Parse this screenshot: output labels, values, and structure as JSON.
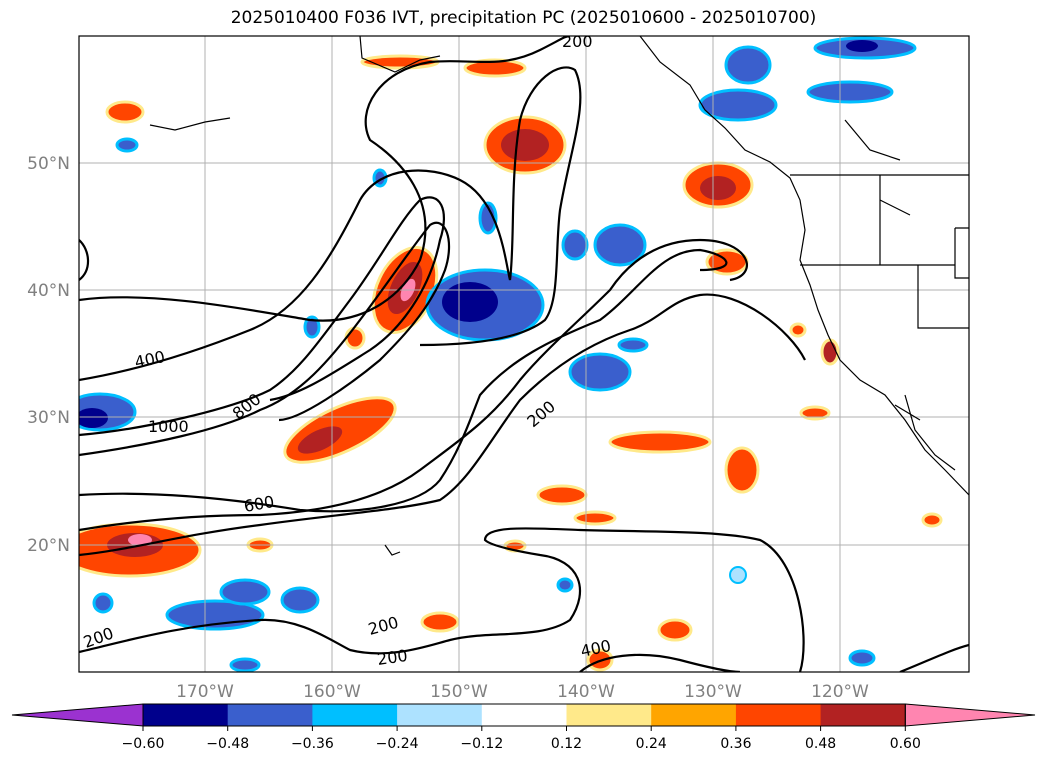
{
  "title": "2025010400 F036 IVT, precipitation PC (2025010600 - 2025010700)",
  "lat_labels": [
    "50°N",
    "40°N",
    "30°N",
    "20°N"
  ],
  "lon_labels": [
    "170°W",
    "160°W",
    "150°W",
    "140°W",
    "130°W",
    "120°W"
  ],
  "contour_labels": [
    "200",
    "400",
    "1000",
    "800",
    "600",
    "200",
    "200",
    "200",
    "200",
    "400"
  ],
  "colorbar": {
    "ticks": [
      "−0.60",
      "−0.48",
      "−0.36",
      "−0.24",
      "−0.12",
      "0.12",
      "0.24",
      "0.36",
      "0.48",
      "0.60"
    ],
    "colors": [
      "#9b32d0",
      "#00008c",
      "#3a5fcd",
      "#00bfff",
      "#ade2ff",
      "#ffffff",
      "#ffe98a",
      "#ffa500",
      "#ff4500",
      "#b22222",
      "#ff85b0"
    ]
  },
  "map_colors": {
    "blue_dark": "#00008c",
    "blue_mid": "#3a5fcd",
    "blue_light": "#00bfff",
    "orange_red": "#ff4500",
    "dark_red": "#b22222",
    "pink": "#ff85b0",
    "yellow": "#ffe98a"
  }
}
